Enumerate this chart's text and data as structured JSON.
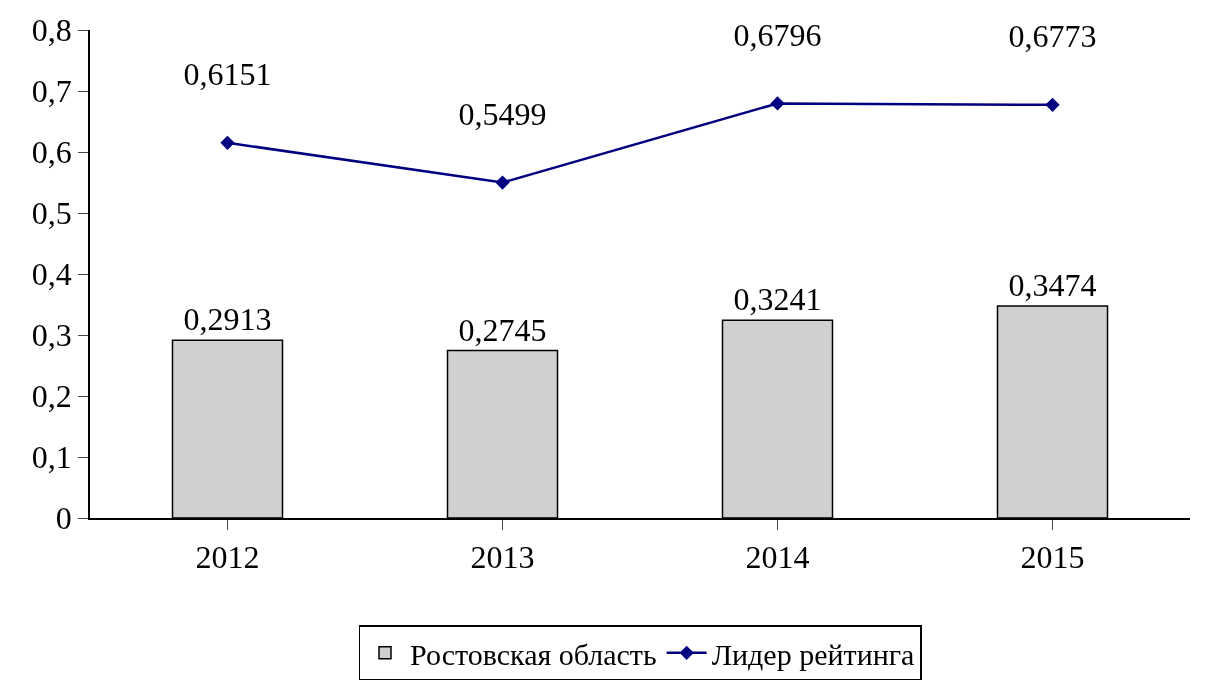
{
  "chart_data": {
    "type": "bar",
    "categories": [
      "2012",
      "2013",
      "2014",
      "2015"
    ],
    "series": [
      {
        "name": "Ростовская область",
        "color": "#d0d0d0",
        "values": [
          0.2913,
          0.2745,
          0.3241,
          0.3474
        ],
        "value_labels": [
          "0,2913",
          "0,2745",
          "0,3241",
          "0,3474"
        ]
      },
      {
        "name": "Лидер рейтинга",
        "type": "line",
        "color": "#000080",
        "values": [
          0.6151,
          0.5499,
          0.6796,
          0.6773
        ],
        "value_labels": [
          "0,6151",
          "0,5499",
          "0,6796",
          "0,6773"
        ]
      }
    ],
    "ylim": [
      0,
      0.8
    ],
    "yticks": [
      0,
      {
        "value": 0.1,
        "label": "0,1"
      },
      {
        "value": 0.2,
        "label": "0,2"
      },
      {
        "value": 0.3,
        "label": "0,3"
      },
      {
        "value": 0.4,
        "label": "0,4"
      },
      {
        "value": 0.5,
        "label": "0,5"
      },
      {
        "value": 0.6,
        "label": "0,6"
      },
      {
        "value": 0.7,
        "label": "0,7"
      },
      {
        "value": 0.8,
        "label": "0,8"
      }
    ],
    "legend": "bottom",
    "marker": "diamond",
    "line_style": "solid"
  }
}
